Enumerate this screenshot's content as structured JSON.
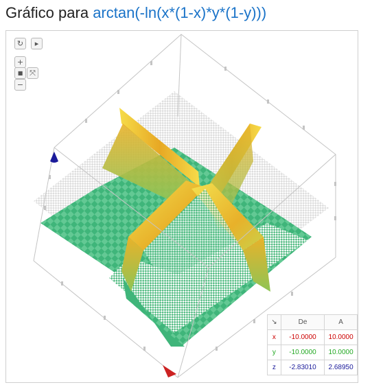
{
  "title": {
    "prefix": "Gráfico para",
    "expression": "arctan(-ln(x*(1-x)*y*(1-y)))"
  },
  "controls": {
    "reset_icon": "refresh-icon",
    "play_icon": "play-icon",
    "zoom_in_icon": "plus-icon",
    "camera_icon": "camera-icon",
    "axes_icon": "axes-icon",
    "zoom_out_icon": "minus-icon",
    "reset_glyph": "↻",
    "play_glyph": "▸",
    "plus_glyph": "+",
    "minus_glyph": "−",
    "camera_glyph": "■",
    "axes_glyph": "⤧"
  },
  "range_table": {
    "corner_icon": "arrow-down-right-icon",
    "corner_glyph": "↘",
    "headers": [
      "De",
      "A"
    ],
    "rows": [
      {
        "axis": "x",
        "from": "-10.0000",
        "to": "10.0000",
        "color": "#cc0000"
      },
      {
        "axis": "y",
        "from": "-10.0000",
        "to": "10.0000",
        "color": "#22a822"
      },
      {
        "axis": "z",
        "from": "-2.83010",
        "to": "2.68950",
        "color": "#1a1a9a"
      }
    ]
  },
  "colors": {
    "surface_green": "#3fb57a",
    "surface_yellow": "#f2d13a",
    "surface_orange": "#e0a020",
    "box_line": "#c4c4c4",
    "x_axis_arrow": "#cc2222",
    "z_axis_arrow": "#1a1a9a"
  }
}
